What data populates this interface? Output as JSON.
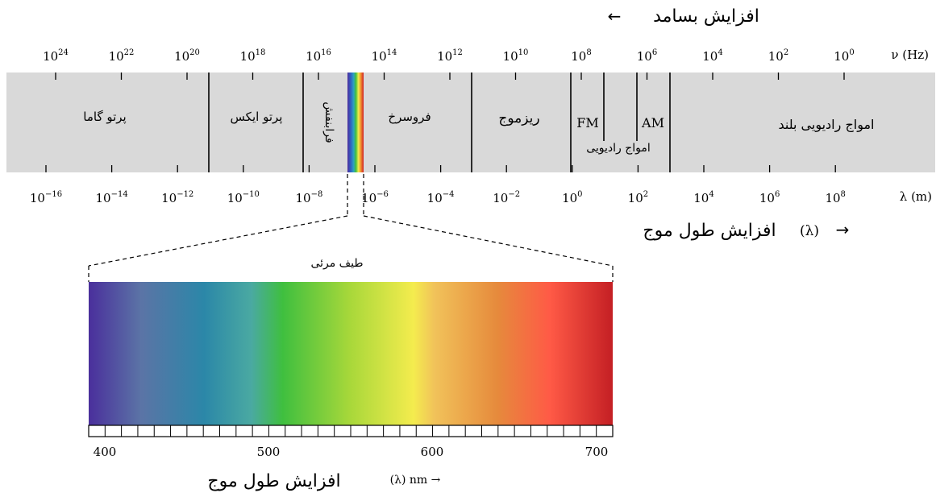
{
  "frequency_heading": "افزایش بسامد",
  "frequency_arrow": "←",
  "frequency_unit": "ν (Hz)",
  "frequency_ticks": [
    {
      "base": "10",
      "exp": "24"
    },
    {
      "base": "10",
      "exp": "22"
    },
    {
      "base": "10",
      "exp": "20"
    },
    {
      "base": "10",
      "exp": "18"
    },
    {
      "base": "10",
      "exp": "16"
    },
    {
      "base": "10",
      "exp": "14"
    },
    {
      "base": "10",
      "exp": "12"
    },
    {
      "base": "10",
      "exp": "10"
    },
    {
      "base": "10",
      "exp": "8"
    },
    {
      "base": "10",
      "exp": "6"
    },
    {
      "base": "10",
      "exp": "4"
    },
    {
      "base": "10",
      "exp": "2"
    },
    {
      "base": "10",
      "exp": "0"
    }
  ],
  "bands": {
    "gamma": "پرتو گاما",
    "xray": "پرتو ایکس",
    "uv": "فرابنفش",
    "infrared": "فروسرخ",
    "microwave": "ریزموج",
    "fm": "FM",
    "am": "AM",
    "radio": "امواج رادیویی",
    "long_radio": "امواج رادیویی بلند"
  },
  "wavelength_unit": "λ (m)",
  "wavelength_ticks": [
    {
      "base": "10",
      "exp": "−16"
    },
    {
      "base": "10",
      "exp": "−14"
    },
    {
      "base": "10",
      "exp": "−12"
    },
    {
      "base": "10",
      "exp": "−10"
    },
    {
      "base": "10",
      "exp": "−8"
    },
    {
      "base": "10",
      "exp": "−6"
    },
    {
      "base": "10",
      "exp": "−4"
    },
    {
      "base": "10",
      "exp": "−2"
    },
    {
      "base": "10",
      "exp": "0"
    },
    {
      "base": "10",
      "exp": "2"
    },
    {
      "base": "10",
      "exp": "4"
    },
    {
      "base": "10",
      "exp": "6"
    },
    {
      "base": "10",
      "exp": "8"
    }
  ],
  "wavelength_heading": "افزایش طول موج",
  "wavelength_symbol": "(λ)",
  "wavelength_arrow": "→",
  "visible_title": "طیف مرئی",
  "visible_ticks": [
    "400",
    "500",
    "600",
    "700"
  ],
  "visible_heading": "افزایش طول موج",
  "visible_unit": "(λ) nm →",
  "colors": {
    "bar_fill": "#d9d9d9",
    "divider": "#000000",
    "spectrum_stops": [
      "#4a2f9c",
      "#5b74a6",
      "#2b87a8",
      "#4aa9a2",
      "#3fbf3f",
      "#a9d83a",
      "#f4ec4e",
      "#f1c25a",
      "#e68a3c",
      "#ff5a46",
      "#c41f24"
    ]
  }
}
